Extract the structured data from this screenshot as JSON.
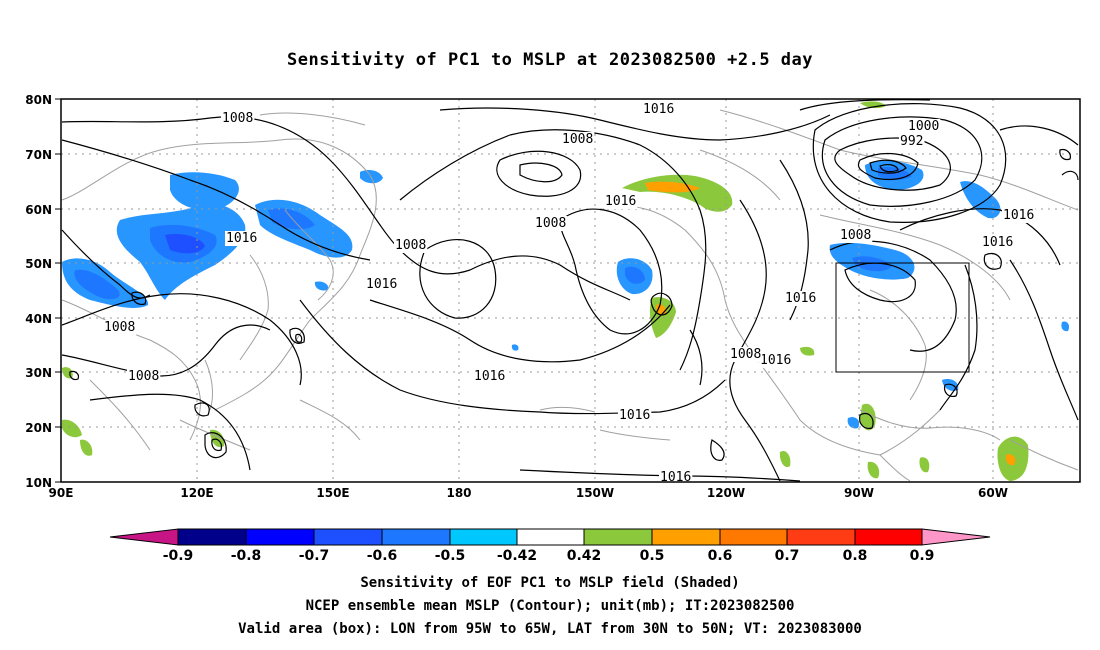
{
  "title": "Sensitivity of PC1 to MSLP at 2023082500 +2.5 day",
  "map": {
    "lat_labels": [
      "80N",
      "70N",
      "60N",
      "50N",
      "40N",
      "30N",
      "20N",
      "10N"
    ],
    "lon_labels": [
      "90E",
      "120E",
      "150E",
      "180",
      "150W",
      "120W",
      "90W",
      "60W"
    ],
    "contour_labels": [
      "1008",
      "1016",
      "1008",
      "1016",
      "1008",
      "1016",
      "1008",
      "1016",
      "1008",
      "1008",
      "1016",
      "1016",
      "1016",
      "1016",
      "1016",
      "1000",
      "992",
      "1016",
      "1016",
      "1008",
      "1016",
      "1008",
      "1008",
      "1016"
    ],
    "valid_area_box": {
      "lon_from": "95W",
      "lon_to": "65W",
      "lat_from": "30N",
      "lat_to": "50N"
    },
    "colors": {
      "contour": "#000000",
      "coastline": "#a0a0a0",
      "grid": "#999999"
    }
  },
  "colorbar": {
    "labels": [
      "-0.9",
      "-0.8",
      "-0.7",
      "-0.6",
      "-0.5",
      "-0.42",
      "0.42",
      "0.5",
      "0.6",
      "0.7",
      "0.8",
      "0.9"
    ],
    "colors": [
      "#c71585",
      "#00008b",
      "#0000ff",
      "#1e50ff",
      "#1e78ff",
      "#2896ff",
      "#00c8ff",
      "#ffffff",
      "#8cc83c",
      "#ffa000",
      "#ff7800",
      "#ff3c14",
      "#ff0000",
      "#ff96c8"
    ]
  },
  "captions": [
    "Sensitivity of EOF PC1 to MSLP field (Shaded)",
    "NCEP ensemble mean MSLP (Contour); unit(mb); IT:2023082500",
    "Valid area (box): LON from 95W to 65W, LAT from 30N to 50N; VT: 2023083000"
  ]
}
